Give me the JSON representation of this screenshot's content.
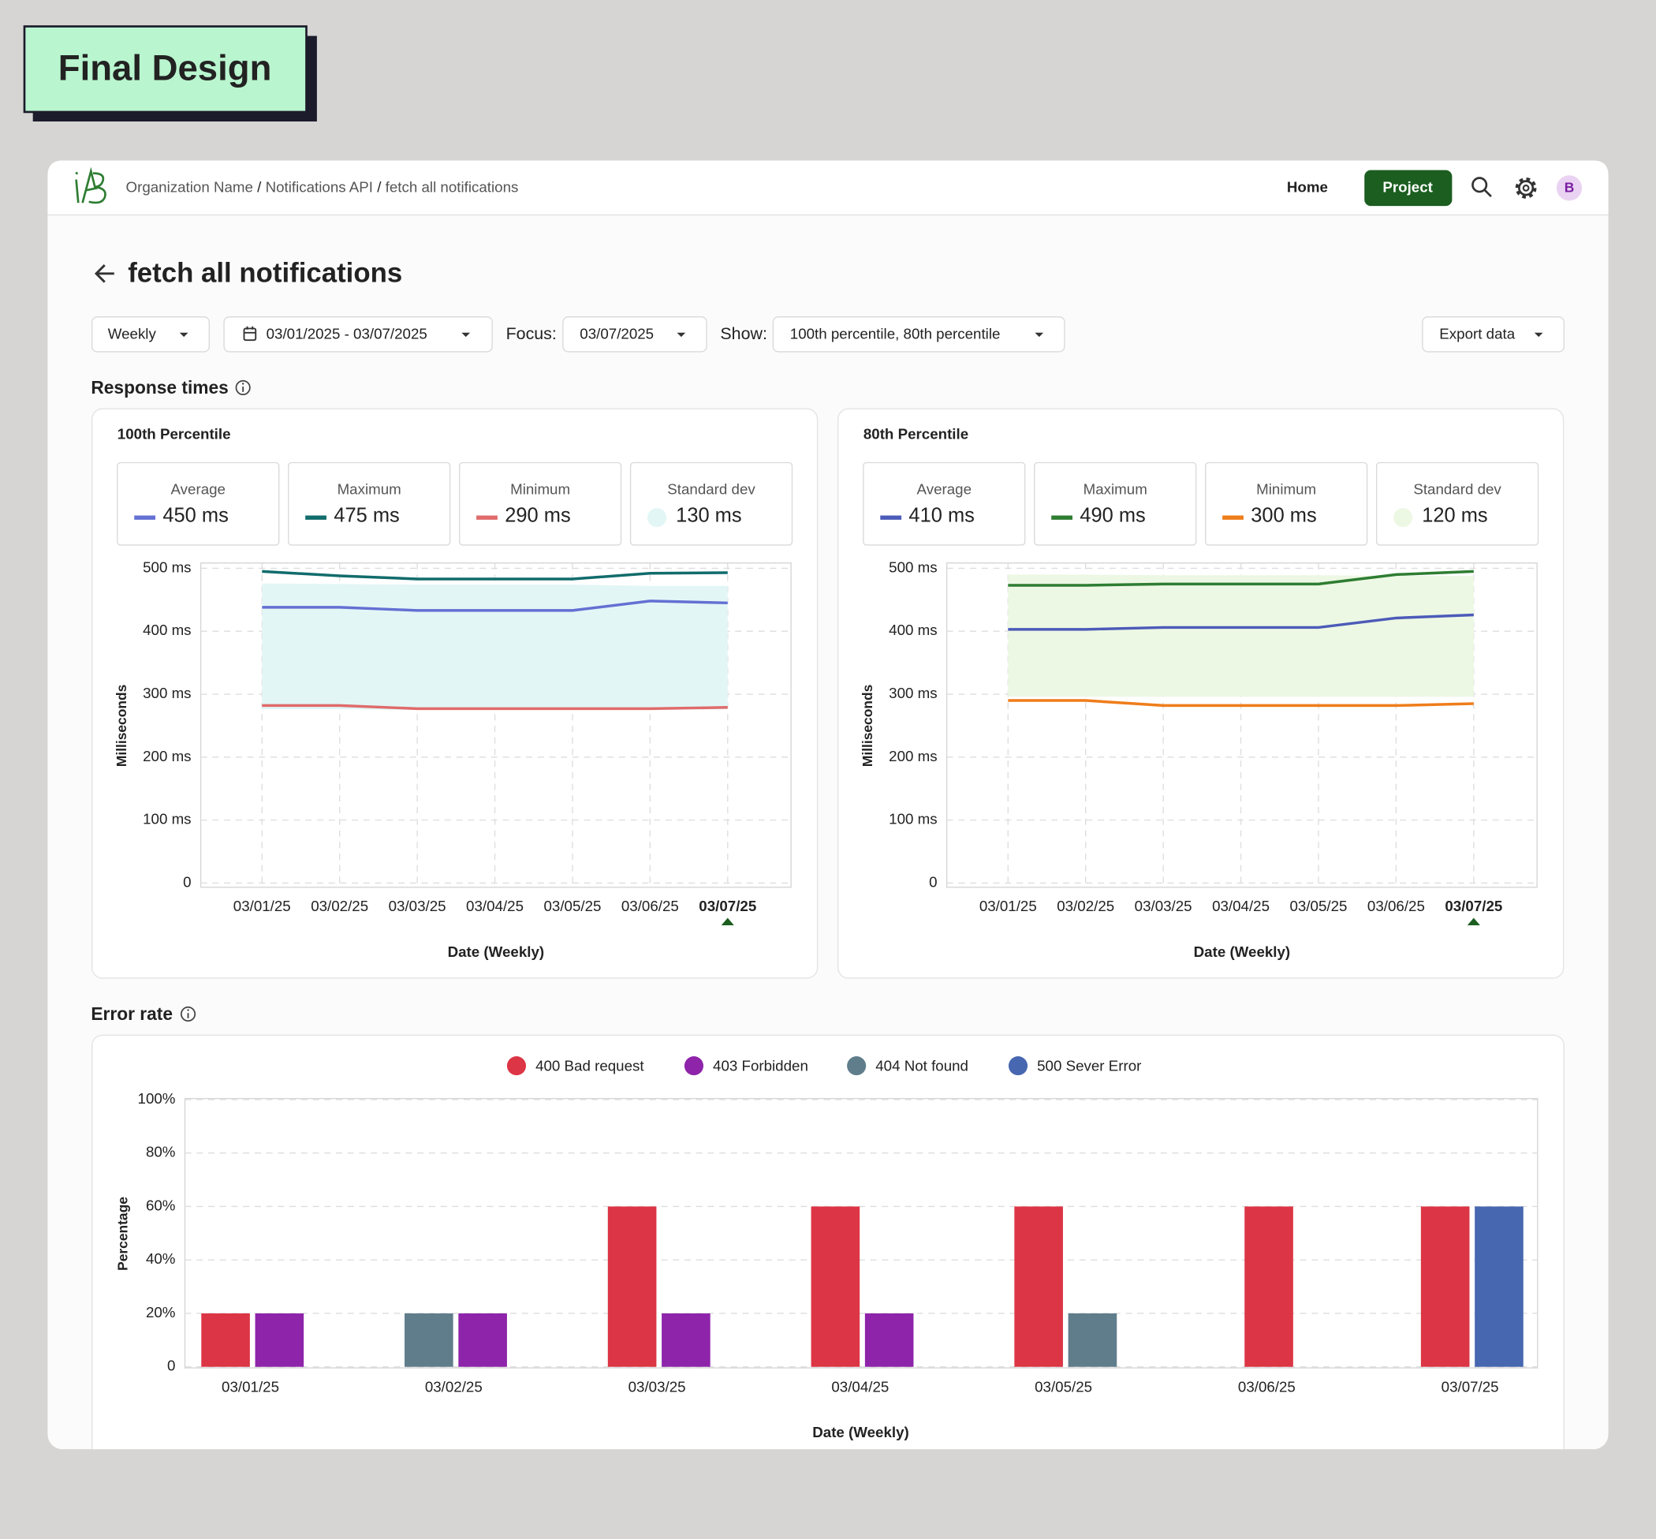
{
  "header": {
    "badge": "Final Design",
    "breadcrumb": [
      "Organization Name",
      "Notifications API",
      "fetch all notifications"
    ],
    "separator": "/",
    "nav": [
      "Home",
      "Project"
    ],
    "avatar": "B"
  },
  "page": {
    "title": "fetch all notifications",
    "filters": {
      "period": "Weekly",
      "date_range": "03/01/2025 - 03/07/2025",
      "focus_label": "Focus:",
      "focus": "03/07/2025",
      "show_label": "Show:",
      "show": "100th percentile, 80th percentile",
      "export": "Export data"
    },
    "sections": [
      "Response times",
      "Error rate"
    ]
  },
  "chart_data": [
    {
      "type": "line",
      "title": "100th Percentile",
      "x_label": "Date (Weekly)",
      "y_label": "Milliseconds",
      "categories": [
        "03/01/25",
        "03/02/25",
        "03/03/25",
        "03/04/25",
        "03/05/25",
        "03/06/25",
        "03/07/25"
      ],
      "focus": 6,
      "ylim": [
        0,
        500
      ],
      "yticks": [
        0,
        {
          "value": 100,
          "label": "100 ms"
        },
        {
          "value": 200,
          "label": "200 ms"
        },
        {
          "value": 300,
          "label": "300 ms"
        },
        {
          "value": 400,
          "label": "400 ms"
        },
        {
          "value": 500,
          "label": "500 ms"
        }
      ],
      "grid": true,
      "series": [
        {
          "name": "Average",
          "summary": "450 ms",
          "color": "#6470d2",
          "values": [
            438,
            438,
            433,
            433,
            433,
            448,
            445
          ]
        },
        {
          "name": "Maximum",
          "summary": "475 ms",
          "color": "#126c6c",
          "values": [
            495,
            488,
            483,
            483,
            483,
            492,
            493
          ]
        },
        {
          "name": "Minimum",
          "summary": "290 ms",
          "color": "#e06b6b",
          "values": [
            282,
            282,
            277,
            277,
            277,
            277,
            279
          ]
        },
        {
          "name": "Standard dev",
          "summary": "130 ms",
          "color": "#e3f6f6",
          "upper": [
            476,
            475,
            474,
            474,
            474,
            472,
            472
          ],
          "lower": [
            276,
            276,
            275,
            275,
            275,
            275,
            276
          ]
        }
      ]
    },
    {
      "type": "line",
      "title": "80th Percentile",
      "x_label": "Date (Weekly)",
      "y_label": "Milliseconds",
      "categories": [
        "03/01/25",
        "03/02/25",
        "03/03/25",
        "03/04/25",
        "03/05/25",
        "03/06/25",
        "03/07/25"
      ],
      "focus": 6,
      "ylim": [
        0,
        500
      ],
      "yticks": [
        0,
        {
          "value": 100,
          "label": "100 ms"
        },
        {
          "value": 200,
          "label": "200 ms"
        },
        {
          "value": 300,
          "label": "300 ms"
        },
        {
          "value": 400,
          "label": "400 ms"
        },
        {
          "value": 500,
          "label": "500 ms"
        }
      ],
      "grid": true,
      "series": [
        {
          "name": "Average",
          "summary": "410 ms",
          "color": "#4c5bb8",
          "values": [
            403,
            403,
            406,
            406,
            406,
            421,
            426
          ]
        },
        {
          "name": "Maximum",
          "summary": "490 ms",
          "color": "#2e7d32",
          "values": [
            473,
            473,
            475,
            475,
            475,
            490,
            495
          ]
        },
        {
          "name": "Minimum",
          "summary": "300 ms",
          "color": "#ef7d1a",
          "values": [
            290,
            290,
            282,
            282,
            282,
            282,
            285
          ]
        },
        {
          "name": "Standard dev",
          "summary": "120 ms",
          "color": "#edf8e4",
          "upper": [
            490,
            490,
            489,
            489,
            489,
            488,
            488
          ],
          "lower": [
            296,
            296,
            296,
            296,
            296,
            296,
            296
          ]
        }
      ]
    },
    {
      "type": "bar",
      "x_label": "Date (Weekly)",
      "y_label": "Percentage",
      "categories": [
        "03/01/25",
        "03/02/25",
        "03/03/25",
        "03/04/25",
        "03/05/25",
        "03/06/25",
        "03/07/25"
      ],
      "ylim": [
        0,
        100
      ],
      "yticks": [
        0,
        {
          "value": 20,
          "label": "20%"
        },
        {
          "value": 40,
          "label": "40%"
        },
        {
          "value": 60,
          "label": "60%"
        },
        {
          "value": 80,
          "label": "80%"
        },
        {
          "value": 100,
          "label": "100%"
        }
      ],
      "grid": true,
      "legend": "top",
      "series": [
        {
          "name": "400 Bad request",
          "color": "#dc3545",
          "values": [
            20,
            null,
            60,
            60,
            60,
            60,
            60
          ]
        },
        {
          "name": "403 Forbidden",
          "color": "#8e24aa",
          "values": [
            20,
            20,
            20,
            20,
            null,
            null,
            null
          ]
        },
        {
          "name": "404 Not found",
          "color": "#607d8b",
          "values": [
            null,
            20,
            null,
            null,
            20,
            null,
            null
          ]
        },
        {
          "name": "500 Sever Error",
          "color": "#4767b0",
          "values": [
            null,
            null,
            null,
            null,
            null,
            null,
            60
          ]
        }
      ]
    }
  ]
}
